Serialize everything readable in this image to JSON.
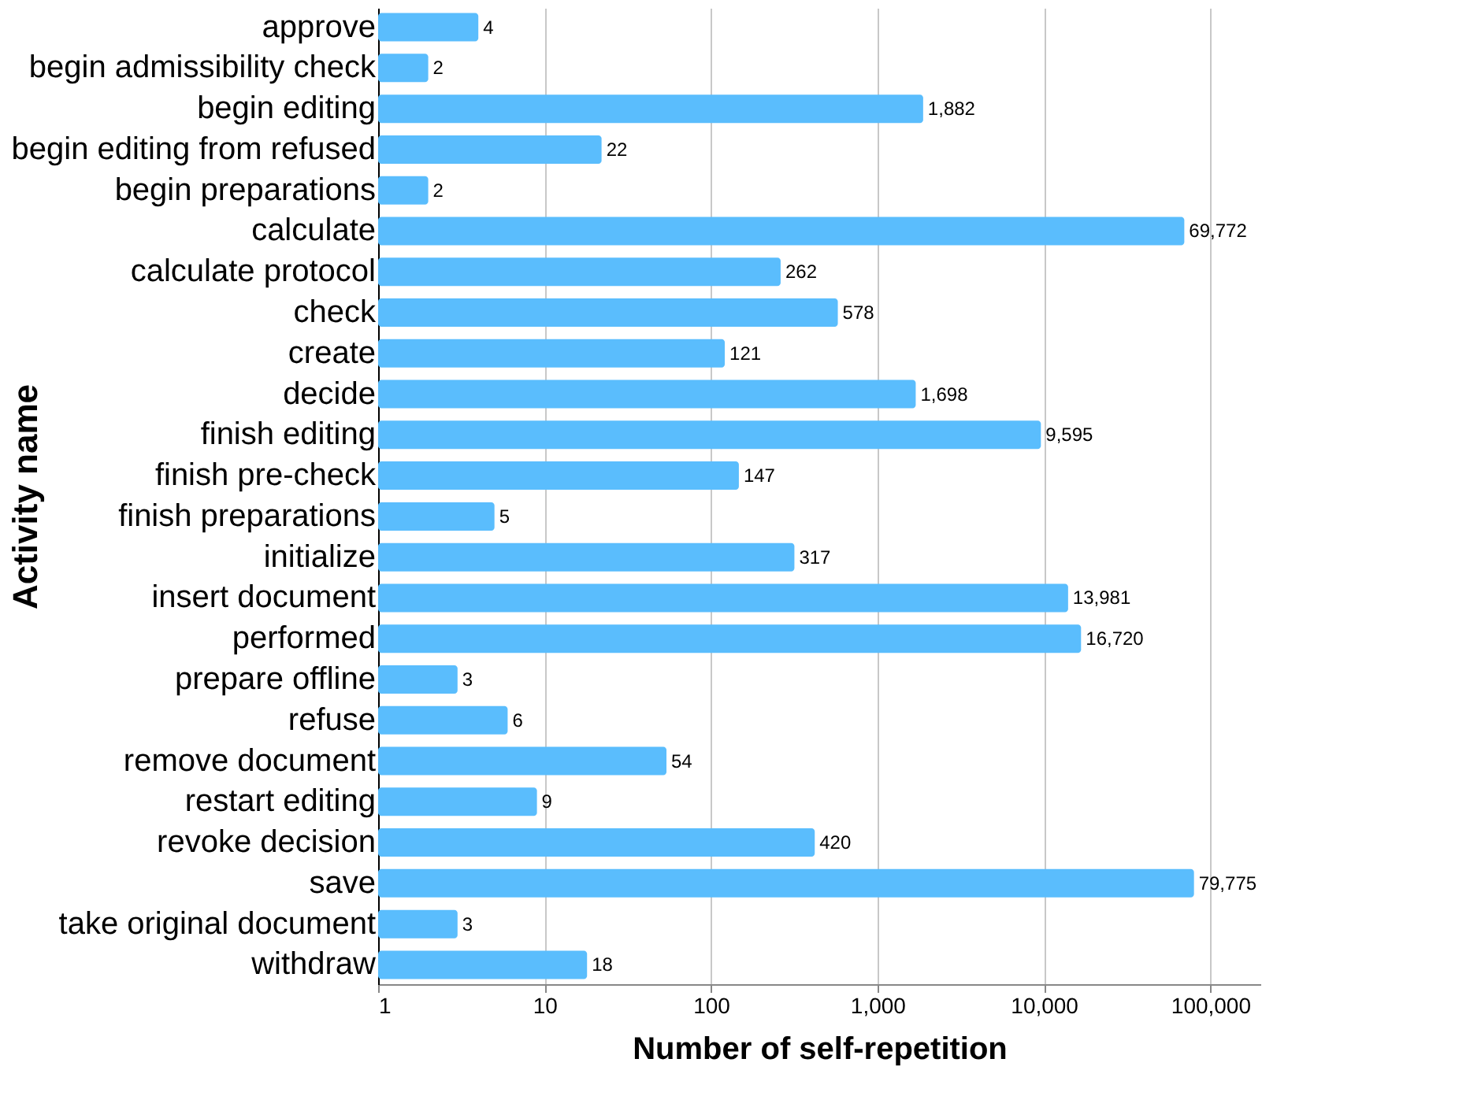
{
  "chart_data": {
    "type": "bar",
    "orientation": "horizontal",
    "log": "x",
    "xlabel": "Number of self-repetition",
    "ylabel": "Activity name",
    "categories": [
      "approve",
      "begin admissibility check",
      "begin editing",
      "begin editing from refused",
      "begin preparations",
      "calculate",
      "calculate protocol",
      "check",
      "create",
      "decide",
      "finish editing",
      "finish pre-check",
      "finish preparations",
      "initialize",
      "insert document",
      "performed",
      "prepare offline",
      "refuse",
      "remove document",
      "restart editing",
      "revoke decision",
      "save",
      "take original document",
      "withdraw"
    ],
    "values": [
      4,
      2,
      1882,
      22,
      2,
      69772,
      262,
      578,
      121,
      1698,
      9595,
      147,
      5,
      317,
      13981,
      16720,
      3,
      6,
      54,
      9,
      420,
      79775,
      3,
      18
    ],
    "value_labels": [
      "4",
      "2",
      "1,882",
      "22",
      "2",
      "69,772",
      "262",
      "578",
      "121",
      "1,698",
      "9,595",
      "147",
      "5",
      "317",
      "13,981",
      "16,720",
      "3",
      "6",
      "54",
      "9",
      "420",
      "79,775",
      "3",
      "18"
    ],
    "color": "#5abdfd",
    "grid": "x",
    "xlim": [
      1,
      200000
    ],
    "xticks": [
      {
        "value": 1,
        "label": "1"
      },
      {
        "value": 10,
        "label": "10"
      },
      {
        "value": 100,
        "label": "100"
      },
      {
        "value": 1000,
        "label": "1,000"
      },
      {
        "value": 10000,
        "label": "10,000"
      },
      {
        "value": 100000,
        "label": "100,000"
      }
    ]
  }
}
